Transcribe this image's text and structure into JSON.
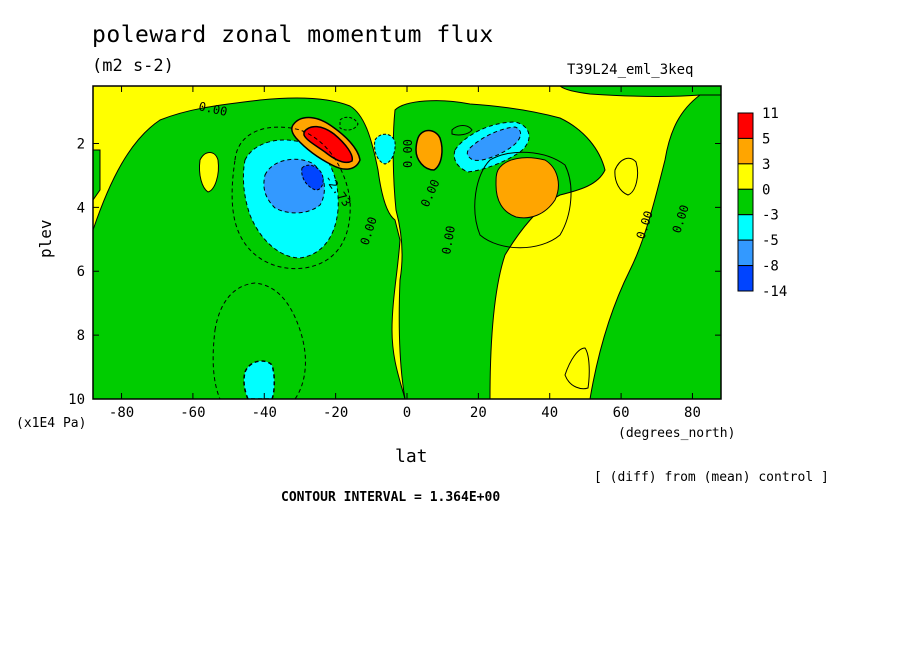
{
  "chart_data": {
    "type": "contour",
    "title": "poleward zonal momentum flux",
    "units": "(m2 s-2)",
    "run_id": "T39L24_eml_3keq",
    "xlabel": "lat",
    "xunit": "(degrees_north)",
    "ylabel": "plev",
    "yunit": "(x1E4 Pa)",
    "xlim": [
      -88,
      88
    ],
    "ylim": [
      10,
      0.2
    ],
    "xticks": [
      "-80",
      "-60",
      "-40",
      "-20",
      "0",
      "20",
      "40",
      "60",
      "80"
    ],
    "yticks": [
      "2",
      "4",
      "6",
      "8",
      "10"
    ],
    "colorbar_labels": [
      "11",
      "5",
      "3",
      "0",
      "-3",
      "-5",
      "-8",
      "-14"
    ],
    "colorbar_colors": [
      "#ff0000",
      "#ffa500",
      "#ffff00",
      "#00cc00",
      "#00ffff",
      "#3399ff",
      "#0044ff"
    ],
    "contour_labels": [
      "0.00",
      "0.00",
      "0.00",
      "0.00",
      "0.00",
      "0.00",
      "0.00",
      "0.00",
      "0.00",
      "-2.73"
    ],
    "subtitle": "[ (diff) from (mean) control ]",
    "contour_interval": "CONTOUR INTERVAL = 1.364E+00",
    "features": [
      {
        "name": "positive max",
        "lat": -22,
        "plev": 1.9,
        "level": 11
      },
      {
        "name": "negative min",
        "lat": -30,
        "plev": 3.2,
        "level": -8
      },
      {
        "name": "negative core",
        "lat": -27,
        "plev": 3.0,
        "level": -14
      },
      {
        "name": "negative south",
        "lat": -36,
        "plev": 9.5,
        "level": -3
      },
      {
        "name": "positive",
        "lat": 7,
        "plev": 2.2,
        "level": 3
      },
      {
        "name": "negative",
        "lat": 23,
        "plev": 1.8,
        "level": -5
      },
      {
        "name": "positive",
        "lat": 35,
        "plev": 3.4,
        "level": 3
      }
    ]
  },
  "colors": {
    "red": "#ff0000",
    "orange": "#ffa500",
    "yellow": "#ffff00",
    "green": "#00cc00",
    "cyan": "#00ffff",
    "lightblue": "#3399ff",
    "blue": "#0044ff"
  }
}
